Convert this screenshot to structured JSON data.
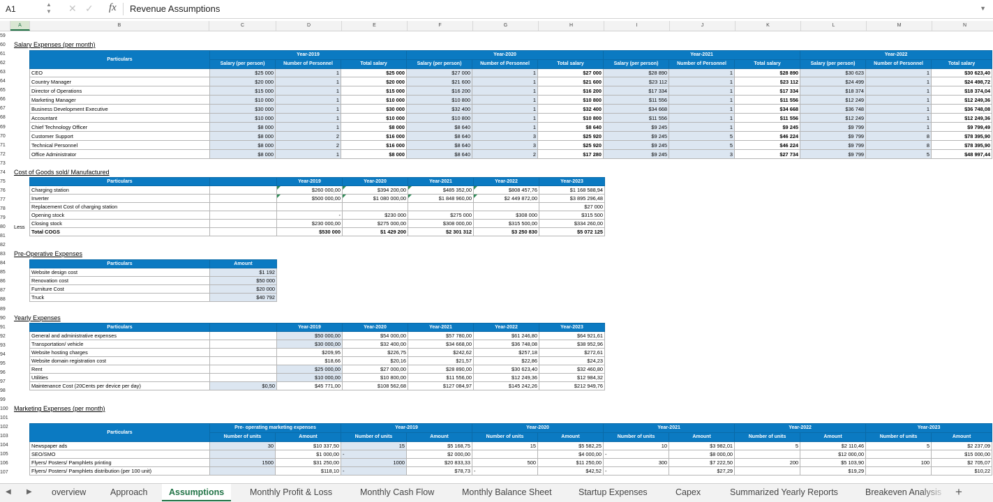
{
  "formula_bar": {
    "name_box": "A1",
    "fx": "fx",
    "content": "Revenue Assumptions"
  },
  "columns": [
    "A",
    "B",
    "C",
    "D",
    "E",
    "F",
    "G",
    "H",
    "I",
    "J",
    "K",
    "L",
    "M",
    "N"
  ],
  "salary": {
    "title": "Salary Expenses (per month)",
    "header_particulars": "Particulars",
    "years": [
      "Year-2019",
      "Year-2020",
      "Year-2021",
      "Year-2022"
    ],
    "sub": [
      "Salary (per person)",
      "Number of Personnel",
      "Total salary"
    ],
    "rows": [
      {
        "n": "CEO",
        "v": [
          [
            "$25 000",
            "1",
            "$25 000"
          ],
          [
            "$27 000",
            "1",
            "$27 000"
          ],
          [
            "$28 890",
            "1",
            "$28 890"
          ],
          [
            "$30 623",
            "1",
            "$30 623,40"
          ]
        ]
      },
      {
        "n": "Country Manager",
        "v": [
          [
            "$20 000",
            "1",
            "$20 000"
          ],
          [
            "$21 600",
            "1",
            "$21 600"
          ],
          [
            "$23 112",
            "1",
            "$23 112"
          ],
          [
            "$24 499",
            "1",
            "$24 498,72"
          ]
        ]
      },
      {
        "n": "Director of Operations",
        "v": [
          [
            "$15 000",
            "1",
            "$15 000"
          ],
          [
            "$16 200",
            "1",
            "$16 200"
          ],
          [
            "$17 334",
            "1",
            "$17 334"
          ],
          [
            "$18 374",
            "1",
            "$18 374,04"
          ]
        ]
      },
      {
        "n": "Marketing Manager",
        "v": [
          [
            "$10 000",
            "1",
            "$10 000"
          ],
          [
            "$10 800",
            "1",
            "$10 800"
          ],
          [
            "$11 556",
            "1",
            "$11 556"
          ],
          [
            "$12 249",
            "1",
            "$12 249,36"
          ]
        ]
      },
      {
        "n": "Business Development Executive",
        "v": [
          [
            "$30 000",
            "1",
            "$30 000"
          ],
          [
            "$32 400",
            "1",
            "$32 400"
          ],
          [
            "$34 668",
            "1",
            "$34 668"
          ],
          [
            "$36 748",
            "1",
            "$36 748,08"
          ]
        ]
      },
      {
        "n": "Accountant",
        "v": [
          [
            "$10 000",
            "1",
            "$10 000"
          ],
          [
            "$10 800",
            "1",
            "$10 800"
          ],
          [
            "$11 556",
            "1",
            "$11 556"
          ],
          [
            "$12 249",
            "1",
            "$12 249,36"
          ]
        ]
      },
      {
        "n": "Chief Technology Officer",
        "v": [
          [
            "$8 000",
            "1",
            "$8 000"
          ],
          [
            "$8 640",
            "1",
            "$8 640"
          ],
          [
            "$9 245",
            "1",
            "$9 245"
          ],
          [
            "$9 799",
            "1",
            "$9 799,49"
          ]
        ]
      },
      {
        "n": "Customer Support",
        "v": [
          [
            "$8 000",
            "2",
            "$16 000"
          ],
          [
            "$8 640",
            "3",
            "$25 920"
          ],
          [
            "$9 245",
            "5",
            "$46 224"
          ],
          [
            "$9 799",
            "8",
            "$78 395,90"
          ]
        ]
      },
      {
        "n": "Technical Personnel",
        "v": [
          [
            "$8 000",
            "2",
            "$16 000"
          ],
          [
            "$8 640",
            "3",
            "$25 920"
          ],
          [
            "$9 245",
            "5",
            "$46 224"
          ],
          [
            "$9 799",
            "8",
            "$78 395,90"
          ]
        ]
      },
      {
        "n": "Office Administrator",
        "v": [
          [
            "$8 000",
            "1",
            "$8 000"
          ],
          [
            "$8 640",
            "2",
            "$17 280"
          ],
          [
            "$9 245",
            "3",
            "$27 734"
          ],
          [
            "$9 799",
            "5",
            "$48 997,44"
          ]
        ]
      }
    ]
  },
  "cogs": {
    "title": "Cost of Goods sold/ Manufactured",
    "header_particulars": "Particulars",
    "years": [
      "Year-2019",
      "Year-2020",
      "Year-2021",
      "Year-2022",
      "Year-2023"
    ],
    "rows": [
      {
        "p": "",
        "n": "Charging station",
        "v": [
          "$260 000,00",
          "$394 200,00",
          "$485 352,00",
          "$808 457,76",
          "$1 168 588,94"
        ]
      },
      {
        "p": "",
        "n": "Inverter",
        "v": [
          "$500 000,00",
          "$1 080 000,00",
          "$1 848 960,00",
          "$2 449 872,00",
          "$3 895 296,48"
        ]
      },
      {
        "p": "",
        "n": "Replacement Cost of charging station",
        "v": [
          "",
          "",
          "",
          "",
          "$27 000"
        ]
      },
      {
        "p": "",
        "n": "Opening stock",
        "v": [
          "-",
          "$230 000",
          "$275 000",
          "$308 000",
          "$315 500"
        ]
      },
      {
        "p": "Less",
        "n": "Closing stock",
        "v": [
          "$230 000,00",
          "$275 000,00",
          "$308 000,00",
          "$315 500,00",
          "$334 260,00"
        ]
      },
      {
        "p": "",
        "n": "Total COGS",
        "v": [
          "$530 000",
          "$1 429 200",
          "$2 301 312",
          "$3 250 830",
          "$5 072 125"
        ]
      }
    ]
  },
  "preop": {
    "title": "Pre-Operative Expenses",
    "header_particulars": "Particulars",
    "header_amount": "Amount",
    "rows": [
      {
        "n": "Website design cost",
        "v": "$1 192"
      },
      {
        "n": "Renovation cost",
        "v": "$50 000"
      },
      {
        "n": "Furniture Cost",
        "v": "$20 000"
      },
      {
        "n": "Truck",
        "v": "$40 792"
      }
    ]
  },
  "yearly": {
    "title": "Yearly Expenses",
    "header_particulars": "Particulars",
    "years": [
      "Year-2019",
      "Year-2020",
      "Year-2021",
      "Year-2022",
      "Year-2023"
    ],
    "rows": [
      {
        "n": "General and administrative expenses",
        "c": "",
        "v": [
          "$50 000,00",
          "$54 000,00",
          "$57 780,00",
          "$61 246,80",
          "$64 921,61"
        ]
      },
      {
        "n": "Transportation/ vehicle",
        "c": "",
        "v": [
          "$30 000,00",
          "$32 400,00",
          "$34 668,00",
          "$36 748,08",
          "$38 952,96"
        ]
      },
      {
        "n": "Website hosting charges",
        "c": "",
        "v": [
          "$209,95",
          "$226,75",
          "$242,62",
          "$257,18",
          "$272,61"
        ]
      },
      {
        "n": "Website domain registration cost",
        "c": "",
        "v": [
          "$18,66",
          "$20,16",
          "$21,57",
          "$22,86",
          "$24,23"
        ]
      },
      {
        "n": "Rent",
        "c": "",
        "v": [
          "$25 000,00",
          "$27 000,00",
          "$28 890,00",
          "$30 623,40",
          "$32 460,80"
        ]
      },
      {
        "n": "Utilities",
        "c": "",
        "v": [
          "$10 000,00",
          "$10 800,00",
          "$11 556,00",
          "$12 249,36",
          "$12 984,32"
        ]
      },
      {
        "n": "Maintenance Cost (20Cents per device per day)",
        "c": "$0,50",
        "v": [
          "$45 771,00",
          "$108 562,68",
          "$127 084,97",
          "$145 242,26",
          "$212 949,76"
        ]
      }
    ]
  },
  "marketing": {
    "title": "Marketing Expenses (per month)",
    "header_particulars": "Particulars",
    "groups": [
      "Pre- operating marketing expenses",
      "Year-2019",
      "Year-2020",
      "Year-2021",
      "Year-2022",
      "Year-2023"
    ],
    "sub": [
      "Number of units",
      "Amount"
    ],
    "rows": [
      {
        "n": "Newspaper ads",
        "v": [
          [
            "30",
            "$10 337,50"
          ],
          [
            "15",
            "$5 168,75"
          ],
          [
            "15",
            "$5 582,25"
          ],
          [
            "10",
            "$3 982,01"
          ],
          [
            "5",
            "$2 110,46"
          ],
          [
            "5",
            "$2 237,09"
          ]
        ]
      },
      {
        "n": "SEO/SMO",
        "v": [
          [
            "",
            "$1 000,00"
          ],
          [
            "-",
            "$2 000,00"
          ],
          [
            "",
            "$4 000,00"
          ],
          [
            "-",
            "$8 000,00"
          ],
          [
            "",
            "$12 000,00"
          ],
          [
            "",
            "$15 000,00"
          ]
        ]
      },
      {
        "n": "Flyers/ Posters/ Pamphlets printing",
        "v": [
          [
            "1500",
            "$31 250,00"
          ],
          [
            "1000",
            "$20 833,33"
          ],
          [
            "500",
            "$11 250,00"
          ],
          [
            "300",
            "$7 222,50"
          ],
          [
            "200",
            "$5 103,90"
          ],
          [
            "100",
            "$2 705,07"
          ]
        ]
      },
      {
        "n": "Flyers/ Posters/ Pamphlets distribution (per 100 unit)",
        "v": [
          [
            "",
            "$118,10"
          ],
          [
            "-",
            "$78,73"
          ],
          [
            "-",
            "$42,52"
          ],
          [
            "-",
            "$27,29"
          ],
          [
            "",
            "$19,29"
          ],
          [
            "",
            "$10,22"
          ]
        ]
      }
    ]
  },
  "row_numbers": [
    "59",
    "60",
    "61",
    "62",
    "63",
    "64",
    "65",
    "66",
    "67",
    "68",
    "69",
    "70",
    "71",
    "72",
    "73",
    "74",
    "75",
    "76",
    "77",
    "78",
    "79",
    "80",
    "81",
    "82",
    "83",
    "84",
    "85",
    "86",
    "87",
    "88",
    "89",
    "90",
    "91",
    "92",
    "93",
    "94",
    "95",
    "96",
    "97",
    "98",
    "99",
    "100",
    "101",
    "102",
    "103",
    "104",
    "105",
    "106",
    "107"
  ],
  "tabs": [
    "overview",
    "Approach",
    "Assumptions",
    "Monthly Profit & Loss",
    "Monthly Cash Flow",
    "Monthly Balance Sheet",
    "Startup Expenses",
    "Capex",
    "Summarized Yearly Reports",
    "Breakeven Analysis"
  ],
  "active_tab": "Assumptions",
  "colors": {
    "header_blue": "#0b7ac2",
    "input_blue": "#dce6f1",
    "excel_green": "#217346"
  }
}
